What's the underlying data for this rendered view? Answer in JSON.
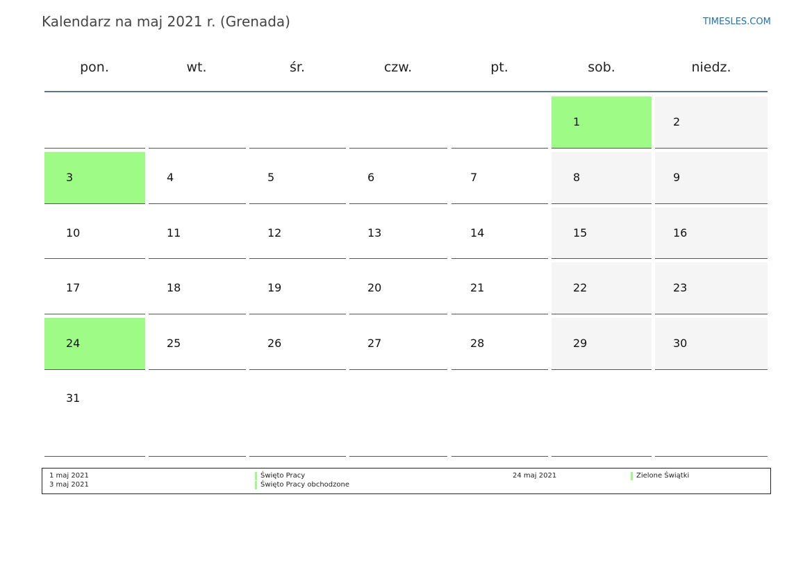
{
  "header": {
    "title": "Kalendarz na maj 2021 r. (Grenada)",
    "brand": "TIMESLES.COM"
  },
  "weekdays": [
    "pon.",
    "wt.",
    "śr.",
    "czw.",
    "pt.",
    "sob.",
    "niedz."
  ],
  "weeks": [
    [
      "",
      "",
      "",
      "",
      "",
      "1",
      "2"
    ],
    [
      "3",
      "4",
      "5",
      "6",
      "7",
      "8",
      "9"
    ],
    [
      "10",
      "11",
      "12",
      "13",
      "14",
      "15",
      "16"
    ],
    [
      "17",
      "18",
      "19",
      "20",
      "21",
      "22",
      "23"
    ],
    [
      "24",
      "25",
      "26",
      "27",
      "28",
      "29",
      "30"
    ],
    [
      "31",
      "",
      "",
      "",
      "",
      "",
      ""
    ]
  ],
  "holiday_days": [
    "1",
    "3",
    "24"
  ],
  "colors": {
    "holiday": "#9efc86",
    "weekend": "#f5f5f5",
    "header_rule": "#5a7291",
    "brand": "#1f6fb2"
  },
  "legend": {
    "left_dates": [
      "1 maj 2021",
      "3 maj 2021"
    ],
    "left_names": [
      "Święto Pracy",
      "Święto Pracy obchodzone"
    ],
    "right_dates": [
      "24 maj 2021"
    ],
    "right_names": [
      "Zielone Świątki"
    ]
  }
}
